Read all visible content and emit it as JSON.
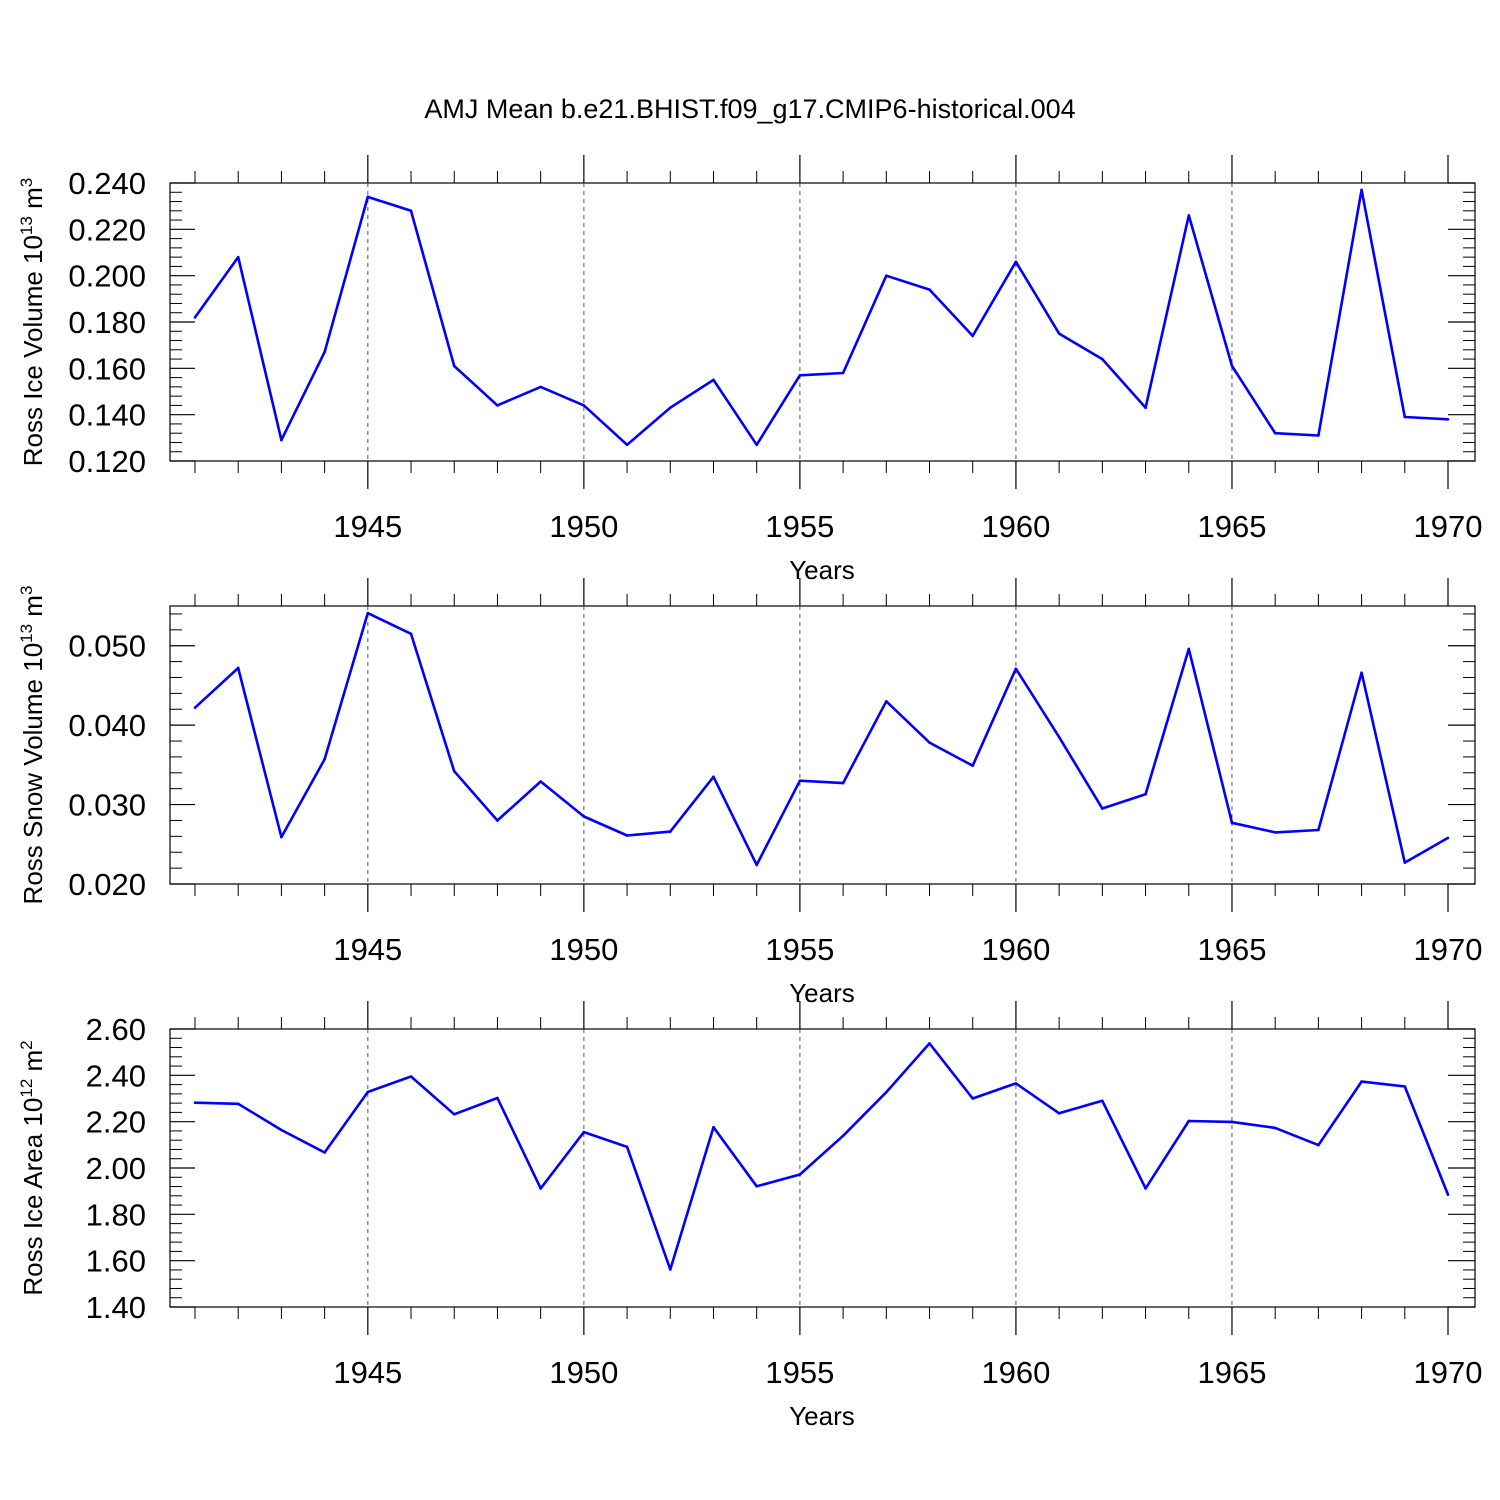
{
  "chart_data": {
    "title": "AMJ Mean b.e21.BHIST.f09_g17.CMIP6-historical.004",
    "years": [
      1941,
      1942,
      1943,
      1944,
      1945,
      1946,
      1947,
      1948,
      1949,
      1950,
      1951,
      1952,
      1953,
      1954,
      1955,
      1956,
      1957,
      1958,
      1959,
      1960,
      1961,
      1962,
      1963,
      1964,
      1965,
      1966,
      1967,
      1968,
      1969,
      1970
    ],
    "panels": [
      {
        "type": "line",
        "name": "ross-ice-volume",
        "ylabel_main": "Ross Ice Volume 10",
        "ylabel_exp": "13",
        "ylabel_unit": " m",
        "ylabel_unit_exp": "3",
        "xlabel": "Years",
        "xlim": [
          1941,
          1970
        ],
        "ylim": [
          0.12,
          0.24
        ],
        "yticks": [
          0.12,
          0.14,
          0.16,
          0.18,
          0.2,
          0.22,
          0.24
        ],
        "yticklabels": [
          "0.120",
          "0.140",
          "0.160",
          "0.180",
          "0.200",
          "0.220",
          "0.240"
        ],
        "color": "#0000ff",
        "values": [
          0.182,
          0.208,
          0.129,
          0.167,
          0.234,
          0.228,
          0.161,
          0.144,
          0.152,
          0.144,
          0.127,
          0.143,
          0.155,
          0.127,
          0.157,
          0.158,
          0.2,
          0.194,
          0.174,
          0.206,
          0.175,
          0.164,
          0.143,
          0.226,
          0.161,
          0.132,
          0.131,
          0.237,
          0.139,
          0.138
        ]
      },
      {
        "type": "line",
        "name": "ross-snow-volume",
        "ylabel_main": "Ross Snow Volume 10",
        "ylabel_exp": "13",
        "ylabel_unit": " m",
        "ylabel_unit_exp": "3",
        "xlabel": "Years",
        "xlim": [
          1941,
          1970
        ],
        "ylim": [
          0.02,
          0.055
        ],
        "yticks": [
          0.02,
          0.03,
          0.04,
          0.05
        ],
        "yticklabels": [
          "0.020",
          "0.030",
          "0.040",
          "0.050"
        ],
        "color": "#0000ff",
        "values": [
          0.0422,
          0.0472,
          0.0259,
          0.0357,
          0.0541,
          0.0515,
          0.0342,
          0.028,
          0.0329,
          0.0285,
          0.0261,
          0.0266,
          0.0335,
          0.0224,
          0.033,
          0.0327,
          0.043,
          0.0378,
          0.0349,
          0.0471,
          0.0385,
          0.0295,
          0.0313,
          0.0496,
          0.0277,
          0.0265,
          0.0268,
          0.0466,
          0.0227,
          0.0258
        ]
      },
      {
        "type": "line",
        "name": "ross-ice-area",
        "ylabel_main": "Ross Ice Area 10",
        "ylabel_exp": "12",
        "ylabel_unit": " m",
        "ylabel_unit_exp": "2",
        "xlabel": "Years",
        "xlim": [
          1941,
          1970
        ],
        "ylim": [
          1.4,
          2.6
        ],
        "yticks": [
          1.4,
          1.6,
          1.8,
          2.0,
          2.2,
          2.4,
          2.6
        ],
        "yticklabels": [
          "1.40",
          "1.60",
          "1.80",
          "2.00",
          "2.20",
          "2.40",
          "2.60"
        ],
        "color": "#0000ff",
        "values": [
          2.282,
          2.277,
          2.164,
          2.067,
          2.328,
          2.395,
          2.232,
          2.302,
          1.912,
          2.155,
          2.091,
          1.562,
          2.176,
          1.921,
          1.972,
          2.139,
          2.327,
          2.538,
          2.3,
          2.365,
          2.236,
          2.29,
          1.912,
          2.203,
          2.199,
          2.173,
          2.099,
          2.373,
          2.352,
          1.885
        ]
      }
    ],
    "xticks": [
      1945,
      1950,
      1955,
      1960,
      1965,
      1970
    ],
    "xticklabels": [
      "1945",
      "1950",
      "1955",
      "1960",
      "1965",
      "1970"
    ]
  }
}
